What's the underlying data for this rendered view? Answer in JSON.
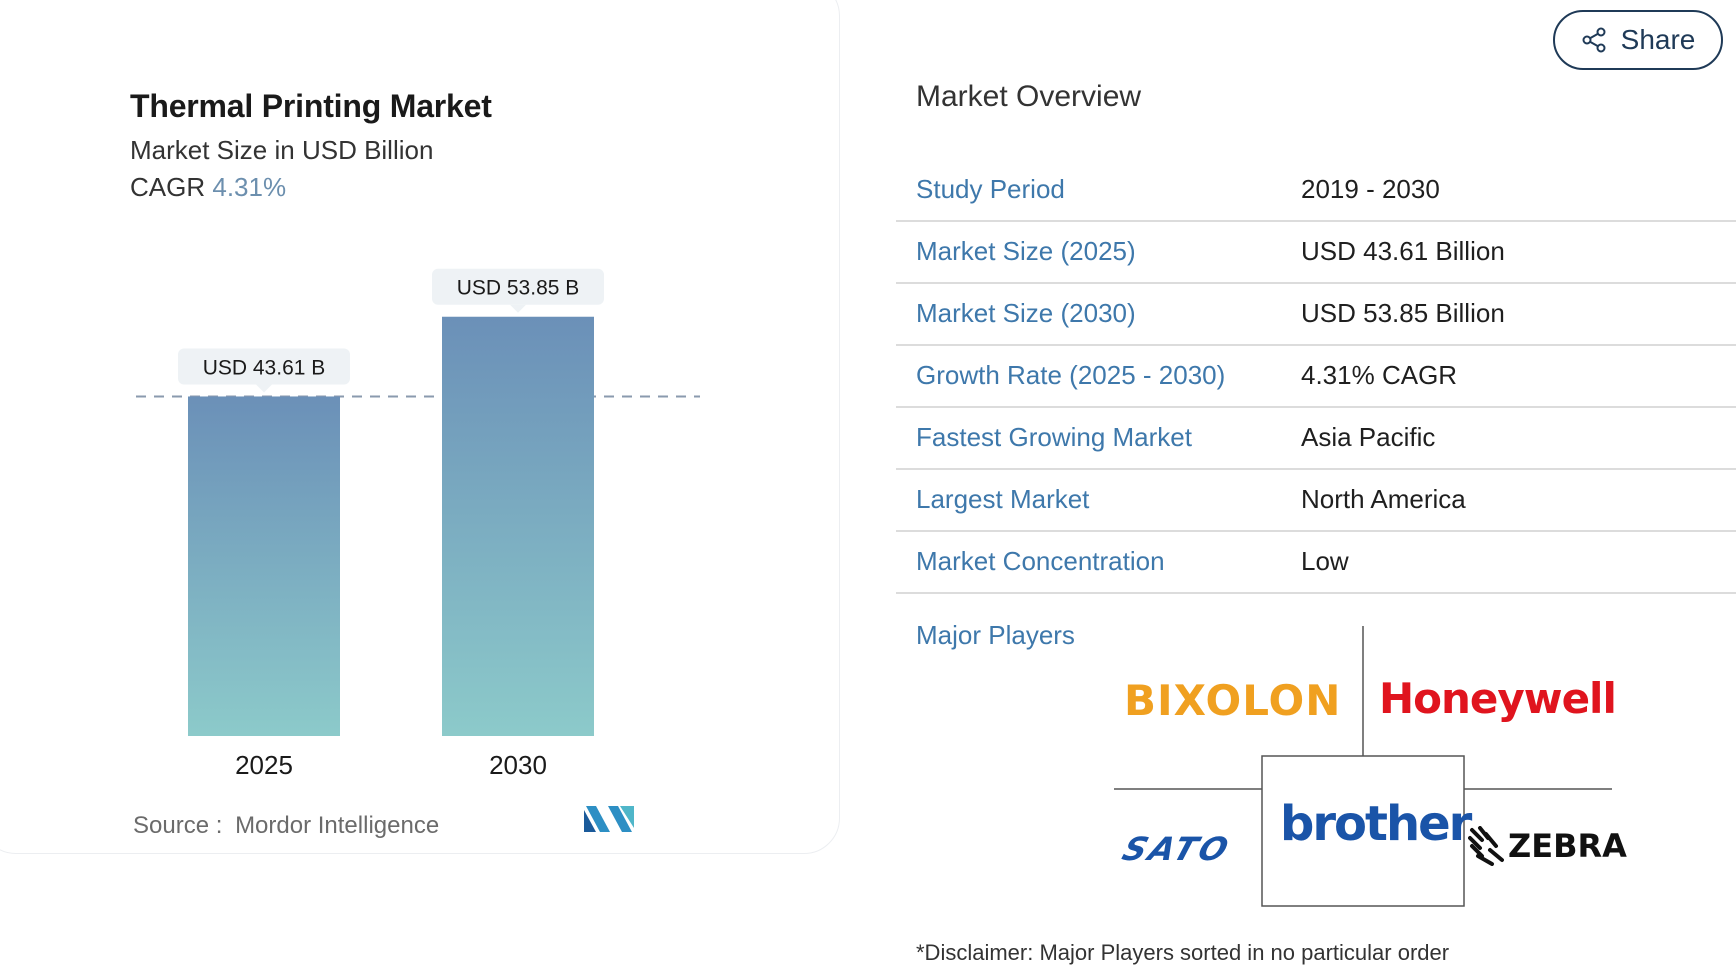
{
  "chart": {
    "title": "Thermal Printing Market",
    "subtitle": "Market Size in USD Billion",
    "cagr_label": "CAGR",
    "cagr_value": "4.31%",
    "source_label": "Source :",
    "source_name": "Mordor Intelligence"
  },
  "chart_data": {
    "type": "bar",
    "categories": [
      "2025",
      "2030"
    ],
    "values": [
      43.61,
      53.85
    ],
    "data_labels": [
      "USD 43.61 B",
      "USD 53.85 B"
    ],
    "title": "Thermal Printing Market",
    "subtitle": "Market Size in USD Billion",
    "xlabel": "",
    "ylabel": "",
    "ylim": [
      0,
      56
    ],
    "reference_line_value": 43.61,
    "grid": false,
    "colors": {
      "bar_top": "#6b90b8",
      "bar_bottom": "#8ccaca",
      "label_bg": "#eef2f5",
      "ref_line": "#8a9aae"
    }
  },
  "share": {
    "label": "Share"
  },
  "overview": {
    "title": "Market Overview",
    "rows": [
      {
        "key": "Study Period",
        "value": "2019 - 2030"
      },
      {
        "key": "Market Size (2025)",
        "value": "USD 43.61 Billion"
      },
      {
        "key": "Market Size (2030)",
        "value": "USD 53.85 Billion"
      },
      {
        "key": "Growth Rate (2025 - 2030)",
        "value": "4.31% CAGR"
      },
      {
        "key": "Fastest Growing Market",
        "value": "Asia Pacific"
      },
      {
        "key": "Largest Market",
        "value": "North America"
      },
      {
        "key": "Market Concentration",
        "value": "Low"
      }
    ],
    "major_players_label": "Major Players",
    "players": {
      "bixolon": "BIXOLON",
      "honeywell": "Honeywell",
      "brother": "brother",
      "sato": "SATO",
      "zebra": "ZEBRA"
    },
    "disclaimer": "*Disclaimer: Major Players sorted in no particular order"
  },
  "colors": {
    "accent": "#3e78ab",
    "brand_dark": "#1f3a57"
  },
  "icons": {
    "share": "share-icon",
    "brand": "mordor-logo-icon"
  }
}
